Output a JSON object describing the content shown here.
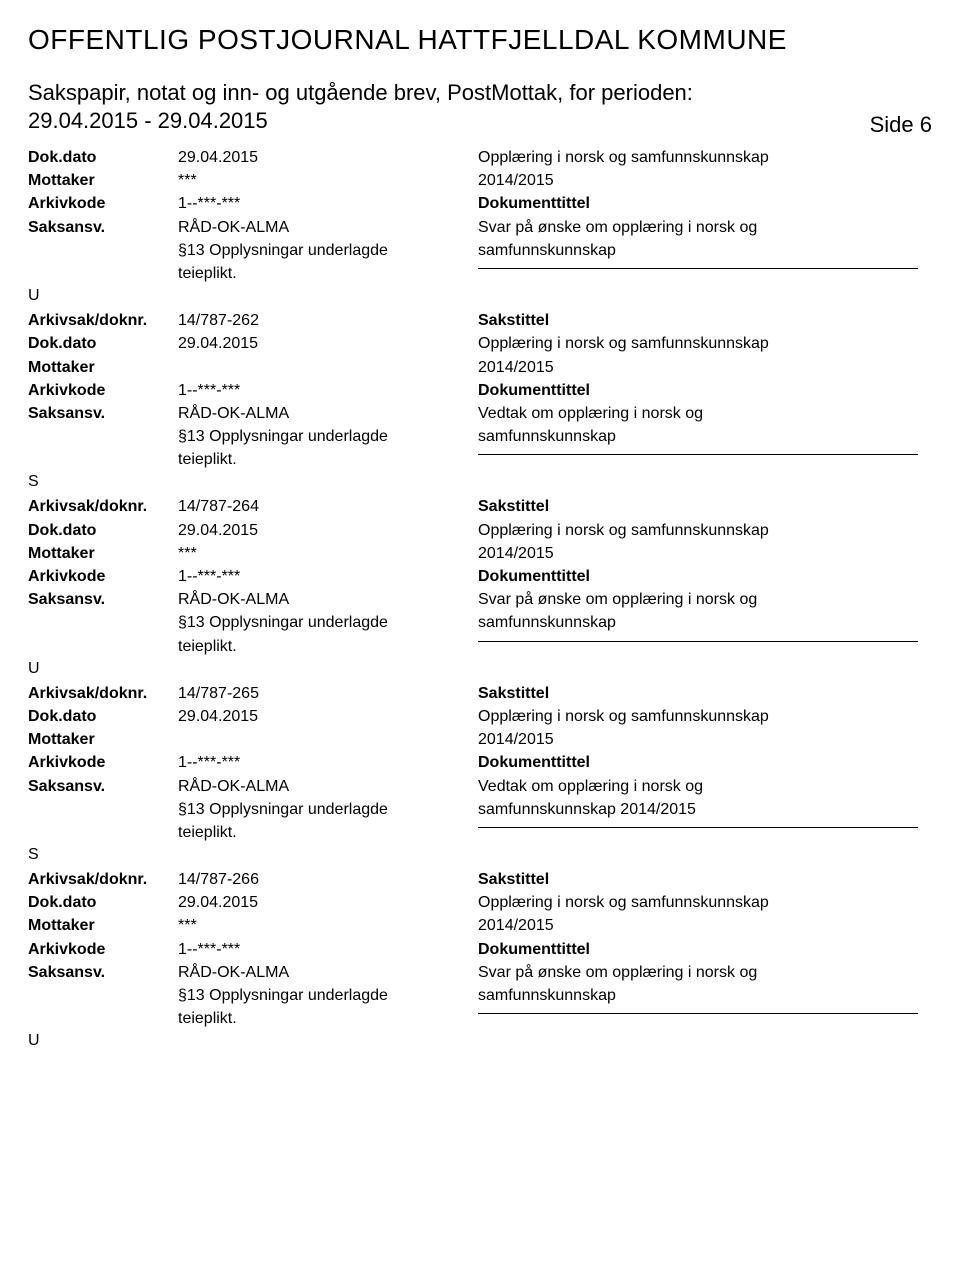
{
  "header": {
    "main_title": "OFFENTLIG POSTJOURNAL HATTFJELLDAL KOMMUNE",
    "sub_heading": "Sakspapir, notat og inn- og utgående brev, PostMottak, for perioden:",
    "period": "29.04.2015 - 29.04.2015",
    "side_label": "Side 6"
  },
  "labels": {
    "dokdato": "Dok.dato",
    "mottaker": "Mottaker",
    "arkivkode": "Arkivkode",
    "saksansv": "Saksansv.",
    "arkivsak": "Arkivsak/doknr.",
    "sakstittel": "Sakstittel",
    "dokumenttittel": "Dokumenttittel"
  },
  "entries": [
    {
      "first": true,
      "dokdato": "29.04.2015",
      "mottaker": "***",
      "arkivkode": "1--***-***",
      "saksansv": "RÅD-OK-ALMA",
      "extra1": "§13 Opplysningar underlagde",
      "extra2": "teieplikt.",
      "type": "U",
      "saks_line1": "Opplæring i norsk og samfunnskunnskap",
      "saks_line2": "2014/2015",
      "dok_line1": "Svar på ønske om opplæring i norsk og",
      "dok_line2": "samfunnskunnskap"
    },
    {
      "arkivsak": "14/787-262",
      "dokdato": "29.04.2015",
      "mottaker": "",
      "arkivkode": "1--***-***",
      "saksansv": "RÅD-OK-ALMA",
      "extra1": "§13 Opplysningar underlagde",
      "extra2": "teieplikt.",
      "type": "S",
      "saks_line1": "Opplæring i norsk og samfunnskunnskap",
      "saks_line2": "2014/2015",
      "dok_line1": "Vedtak om opplæring i norsk og",
      "dok_line2": "samfunnskunnskap"
    },
    {
      "arkivsak": "14/787-264",
      "dokdato": "29.04.2015",
      "mottaker": "***",
      "arkivkode": "1--***-***",
      "saksansv": "RÅD-OK-ALMA",
      "extra1": "§13 Opplysningar underlagde",
      "extra2": "teieplikt.",
      "type": "U",
      "saks_line1": "Opplæring i norsk og samfunnskunnskap",
      "saks_line2": "2014/2015",
      "dok_line1": "Svar på ønske om opplæring i norsk og",
      "dok_line2": "samfunnskunnskap"
    },
    {
      "arkivsak": "14/787-265",
      "dokdato": "29.04.2015",
      "mottaker": "",
      "arkivkode": "1--***-***",
      "saksansv": "RÅD-OK-ALMA",
      "extra1": "§13 Opplysningar underlagde",
      "extra2": "teieplikt.",
      "type": "S",
      "saks_line1": "Opplæring i norsk og samfunnskunnskap",
      "saks_line2": "2014/2015",
      "dok_line1": "Vedtak om opplæring i norsk og",
      "dok_line2": "samfunnskunnskap 2014/2015"
    },
    {
      "arkivsak": "14/787-266",
      "dokdato": "29.04.2015",
      "mottaker": "***",
      "arkivkode": "1--***-***",
      "saksansv": "RÅD-OK-ALMA",
      "extra1": "§13 Opplysningar underlagde",
      "extra2": "teieplikt.",
      "type": "U",
      "saks_line1": "Opplæring i norsk og samfunnskunnskap",
      "saks_line2": "2014/2015",
      "dok_line1": "Svar på ønske om opplæring i norsk og",
      "dok_line2": "samfunnskunnskap"
    }
  ]
}
